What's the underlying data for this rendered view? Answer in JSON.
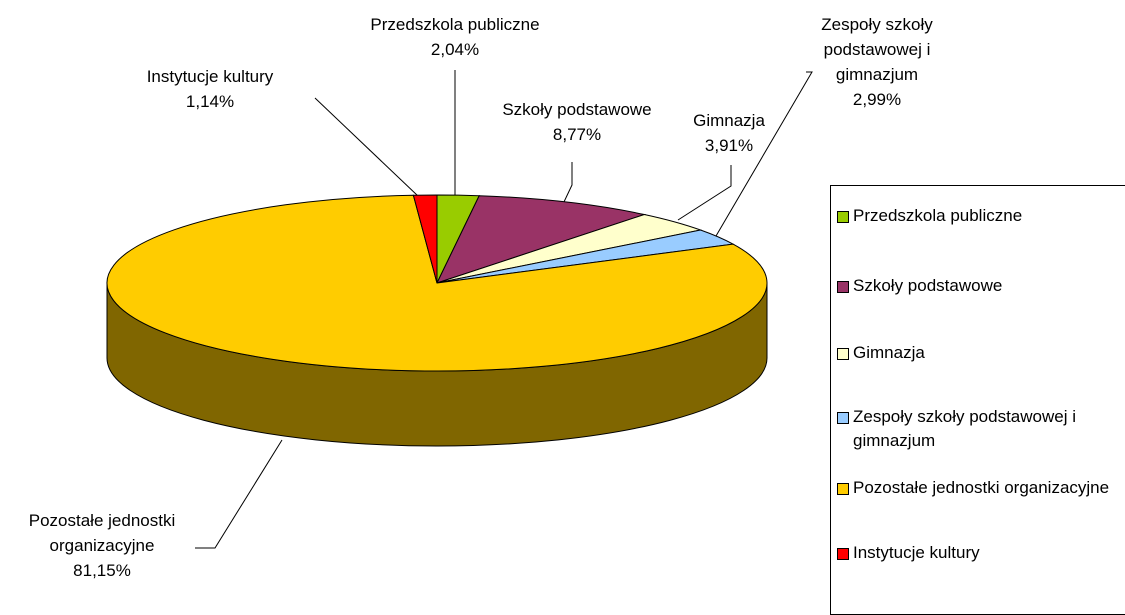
{
  "chart_data": {
    "type": "pie",
    "categories": [
      "Przedszkola publiczne",
      "Szkoły podstawowe",
      "Gimnazja",
      "Zespoły szkoły podstawowej i gimnazjum",
      "Pozostałe jednostki organizacyjne",
      "Instytucje kultury"
    ],
    "values": [
      2.04,
      8.77,
      3.91,
      2.99,
      81.15,
      1.14
    ],
    "value_labels": [
      "2,04%",
      "8,77%",
      "3,91%",
      "2,99%",
      "81,15%",
      "1,14%"
    ],
    "colors": [
      "#99cc00",
      "#993366",
      "#ffffcc",
      "#99ccff",
      "#ffcc00",
      "#ff0000"
    ],
    "legend": "right"
  }
}
